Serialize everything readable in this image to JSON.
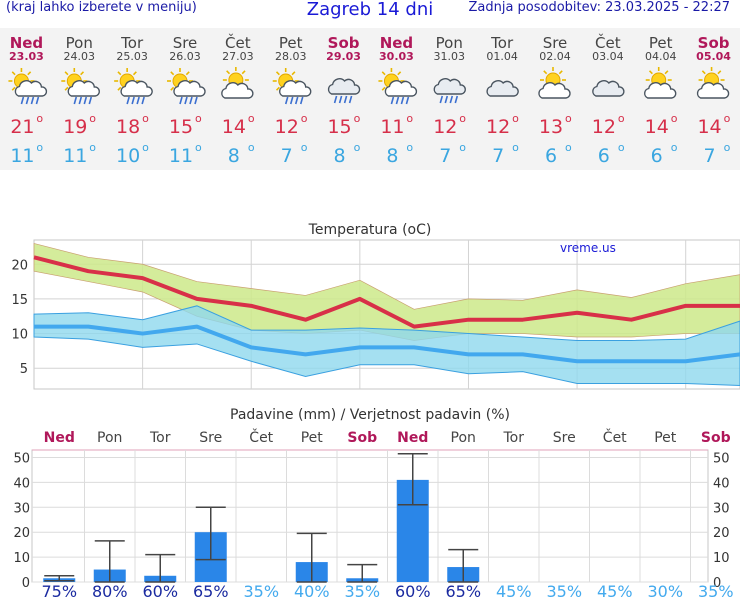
{
  "header": {
    "menu_hint": "(kraj lahko izberete v meniju)",
    "title": "Zagreb 14 dni",
    "updated": "Zadnja posodobitev: 23.03.2025 - 22:27"
  },
  "colors": {
    "weekend": "#b0185a",
    "weekday": "#444444",
    "tmax": "#d62f4a",
    "tmin": "#3aa6e0",
    "band_max": "#cce98a",
    "band_min": "#8fd8ee",
    "line_max": "#d83048",
    "line_min": "#42a8ee",
    "bar": "#2a86e8",
    "prob_high": "#1a2aa0",
    "prob_low": "#44aaee"
  },
  "days": [
    {
      "day": "Ned",
      "date": "23.03",
      "weekend": true,
      "tmax": "21",
      "tmin": "11",
      "icon": "sun-cloud-rain-icon",
      "prob": "75%"
    },
    {
      "day": "Pon",
      "date": "24.03",
      "weekend": false,
      "tmax": "19",
      "tmin": "11",
      "icon": "sun-cloud-rain-icon",
      "prob": "80%"
    },
    {
      "day": "Tor",
      "date": "25.03",
      "weekend": false,
      "tmax": "18",
      "tmin": "10",
      "icon": "sun-cloud-rain-icon",
      "prob": "60%"
    },
    {
      "day": "Sre",
      "date": "26.03",
      "weekend": false,
      "tmax": "15",
      "tmin": "11",
      "icon": "sun-cloud-rain-icon",
      "prob": "65%"
    },
    {
      "day": "Čet",
      "date": "27.03",
      "weekend": false,
      "tmax": "14",
      "tmin": "8",
      "icon": "sun-cloud-icon",
      "prob": "35%"
    },
    {
      "day": "Pet",
      "date": "28.03",
      "weekend": false,
      "tmax": "12",
      "tmin": "7",
      "icon": "sun-cloud-rain-icon",
      "prob": "40%"
    },
    {
      "day": "Sob",
      "date": "29.03",
      "weekend": true,
      "tmax": "15",
      "tmin": "8",
      "icon": "cloud-rain-icon",
      "prob": "35%"
    },
    {
      "day": "Ned",
      "date": "30.03",
      "weekend": true,
      "tmax": "11",
      "tmin": "8",
      "icon": "sun-cloud-rain-icon",
      "prob": "60%"
    },
    {
      "day": "Pon",
      "date": "31.03",
      "weekend": false,
      "tmax": "12",
      "tmin": "7",
      "icon": "cloud-rain-icon",
      "prob": "65%"
    },
    {
      "day": "Tor",
      "date": "01.04",
      "weekend": false,
      "tmax": "12",
      "tmin": "7",
      "icon": "cloud-icon",
      "prob": "45%"
    },
    {
      "day": "Sre",
      "date": "02.04",
      "weekend": false,
      "tmax": "13",
      "tmin": "6",
      "icon": "sun-cloud-icon",
      "prob": "35%"
    },
    {
      "day": "Čet",
      "date": "03.04",
      "weekend": false,
      "tmax": "12",
      "tmin": "6",
      "icon": "cloud-icon",
      "prob": "45%"
    },
    {
      "day": "Pet",
      "date": "04.04",
      "weekend": false,
      "tmax": "14",
      "tmin": "6",
      "icon": "sun-cloud-icon",
      "prob": "30%"
    },
    {
      "day": "Sob",
      "date": "05.04",
      "weekend": true,
      "tmax": "14",
      "tmin": "7",
      "icon": "sun-cloud-icon",
      "prob": "35%"
    }
  ],
  "degree": "o",
  "chart_data": [
    {
      "type": "line",
      "title": "Temperatura (oC)",
      "watermark": "vreme.us",
      "ylim": [
        2,
        23.5
      ],
      "yticks": [
        "5",
        "10",
        "15",
        "20"
      ],
      "grid": true,
      "x": [
        "23.03",
        "24.03",
        "25.03",
        "26.03",
        "27.03",
        "28.03",
        "29.03",
        "30.03",
        "31.03",
        "01.04",
        "02.04",
        "03.04",
        "04.04",
        "05.04"
      ],
      "series": [
        {
          "role": "max",
          "values": [
            21,
            19,
            18,
            15,
            14,
            12,
            15,
            11,
            12,
            12,
            13,
            12,
            14,
            14
          ],
          "band_upper": [
            23,
            21,
            20,
            17.5,
            16.5,
            15.5,
            17.7,
            13.5,
            15,
            14.8,
            16.3,
            15.2,
            17.2,
            18.5
          ],
          "band_lower": [
            19,
            17.5,
            16,
            12.5,
            10.5,
            10,
            10.5,
            9,
            10,
            10,
            9.5,
            9.5,
            10,
            10
          ]
        },
        {
          "role": "min",
          "values": [
            11,
            11,
            10,
            11,
            8,
            7,
            8,
            8,
            7,
            7,
            6,
            6,
            6,
            7
          ],
          "band_upper": [
            12.8,
            13,
            12,
            14,
            10.5,
            10.5,
            10.8,
            10.5,
            10,
            9.5,
            9,
            9,
            9.2,
            11.8
          ],
          "band_lower": [
            9.5,
            9.2,
            8,
            8.5,
            6,
            3.8,
            5.5,
            5.5,
            4.2,
            4.5,
            2.8,
            2.8,
            2.8,
            2.5
          ]
        }
      ]
    },
    {
      "type": "bar",
      "title": "Padavine (mm) / Verjetnost padavin (%)",
      "ylim": [
        0,
        53
      ],
      "yticks": [
        "0",
        "10",
        "20",
        "30",
        "40",
        "50"
      ],
      "grid": true,
      "categories": [
        "Ned",
        "Pon",
        "Tor",
        "Sre",
        "Čet",
        "Pet",
        "Sob",
        "Ned",
        "Pon",
        "Tor",
        "Sre",
        "Čet",
        "Pet",
        "Sob"
      ],
      "values": [
        1.5,
        5,
        2.5,
        20,
        0,
        8,
        1.5,
        41,
        6,
        0,
        0,
        0,
        0,
        0
      ],
      "error_high": [
        2.5,
        16.5,
        11,
        30,
        null,
        19.5,
        7,
        51.5,
        13,
        null,
        null,
        null,
        null,
        null
      ],
      "error_low": [
        0.5,
        0,
        0,
        9,
        null,
        0,
        0,
        31,
        0,
        null,
        null,
        null,
        null,
        null
      ],
      "probabilities": [
        "75%",
        "80%",
        "60%",
        "65%",
        "35%",
        "40%",
        "35%",
        "60%",
        "65%",
        "45%",
        "35%",
        "45%",
        "30%",
        "35%"
      ]
    }
  ]
}
